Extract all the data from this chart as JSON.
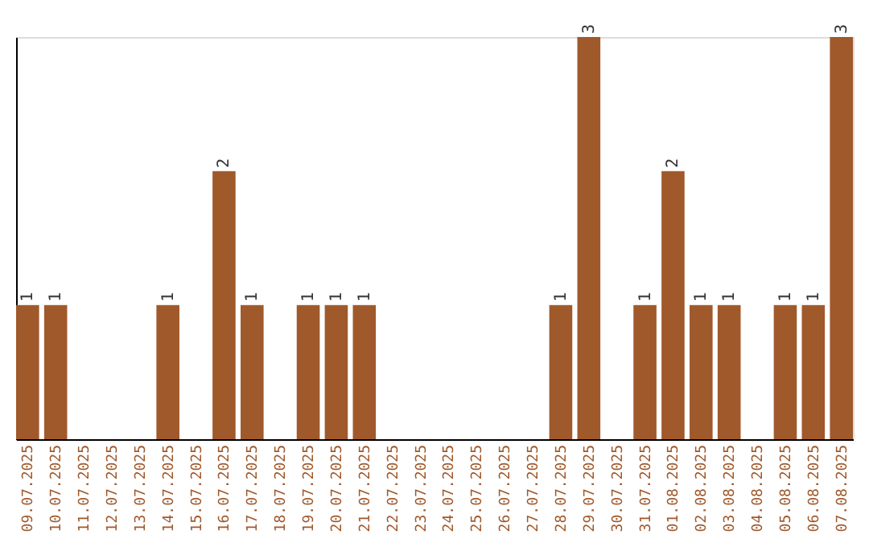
{
  "chart_data": {
    "type": "bar",
    "categories": [
      "09.07.2025",
      "10.07.2025",
      "11.07.2025",
      "12.07.2025",
      "13.07.2025",
      "14.07.2025",
      "15.07.2025",
      "16.07.2025",
      "17.07.2025",
      "18.07.2025",
      "19.07.2025",
      "20.07.2025",
      "21.07.2025",
      "22.07.2025",
      "23.07.2025",
      "24.07.2025",
      "25.07.2025",
      "26.07.2025",
      "27.07.2025",
      "28.07.2025",
      "29.07.2025",
      "30.07.2025",
      "31.07.2025",
      "01.08.2025",
      "02.08.2025",
      "03.08.2025",
      "04.08.2025",
      "05.08.2025",
      "06.08.2025",
      "07.08.2025"
    ],
    "values": [
      1,
      1,
      0,
      0,
      0,
      1,
      0,
      2,
      1,
      0,
      1,
      1,
      1,
      0,
      0,
      0,
      0,
      0,
      0,
      1,
      3,
      0,
      1,
      2,
      1,
      1,
      0,
      1,
      1,
      3
    ],
    "value_labels": [
      "1",
      "1",
      null,
      null,
      null,
      "1",
      null,
      "2",
      "1",
      null,
      "1",
      "1",
      "1",
      null,
      null,
      null,
      null,
      null,
      null,
      "1",
      "3",
      null,
      "1",
      "2",
      "1",
      "1",
      null,
      "1",
      "1",
      "3"
    ],
    "color": "#a0592b",
    "grid": false
  }
}
